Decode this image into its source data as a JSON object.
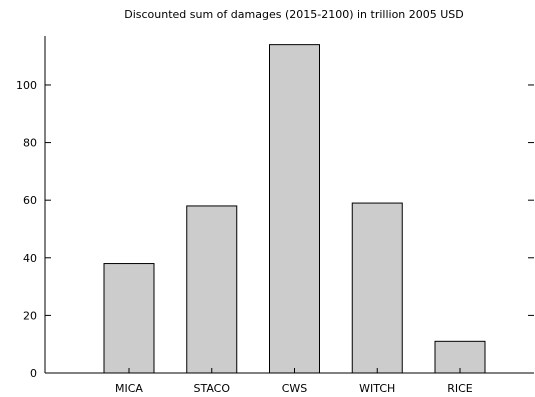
{
  "chart_data": {
    "type": "bar",
    "title": "Discounted sum of damages (2015-2100) in trillion 2005 USD",
    "xlabel": "",
    "ylabel": "",
    "categories": [
      "MICA",
      "STACO",
      "CWS",
      "WITCH",
      "RICE"
    ],
    "values": [
      38,
      58,
      114,
      59,
      11
    ],
    "ylim": [
      0,
      117
    ],
    "yticks": [
      0,
      20,
      40,
      60,
      80,
      100
    ],
    "bar_color": "#cccccc",
    "grid": false,
    "legend": "none"
  }
}
